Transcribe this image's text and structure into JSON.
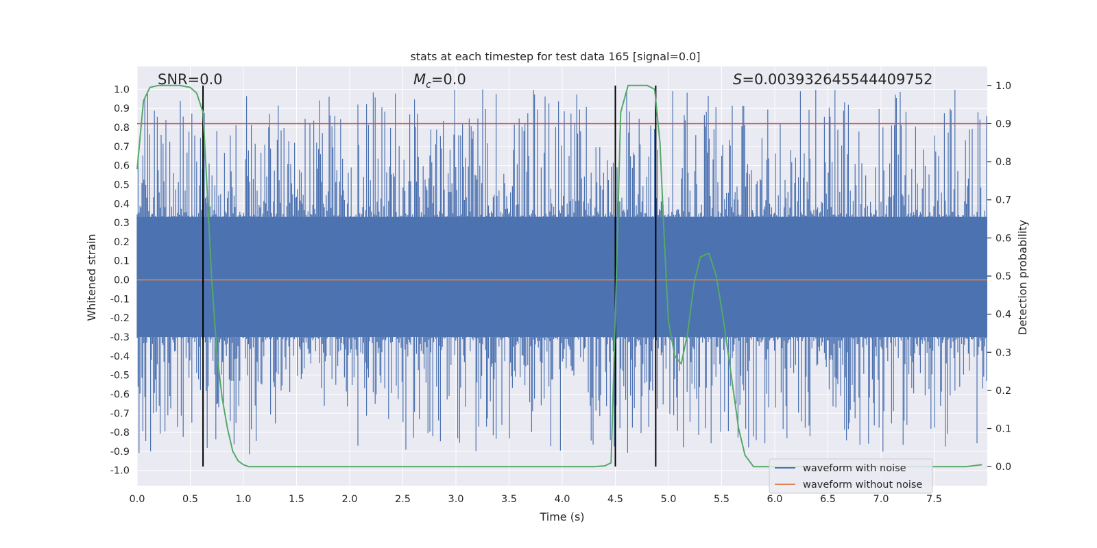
{
  "chart_data": {
    "type": "line",
    "title": "stats at each timestep for test data 165 [signal=0.0]",
    "xlabel": "Time (s)",
    "ylabel": "Whitened strain",
    "ylabel_right": "Detection probability",
    "xlim": [
      0.0,
      8.0
    ],
    "ylim": [
      -1.08,
      1.12
    ],
    "ylim_right": [
      -0.05,
      1.05
    ],
    "xticks": [
      0.0,
      0.5,
      1.0,
      1.5,
      2.0,
      2.5,
      3.0,
      3.5,
      4.0,
      4.5,
      5.0,
      5.5,
      6.0,
      6.5,
      7.0,
      7.5
    ],
    "xtick_labels": [
      "0.0",
      "0.5",
      "1.0",
      "1.5",
      "2.0",
      "2.5",
      "3.0",
      "3.5",
      "4.0",
      "4.5",
      "5.0",
      "5.5",
      "6.0",
      "6.5",
      "7.0",
      "7.5"
    ],
    "yticks": [
      -1.0,
      -0.9,
      -0.8,
      -0.7,
      -0.6,
      -0.5,
      -0.4,
      -0.3,
      -0.2,
      -0.1,
      0.0,
      0.1,
      0.2,
      0.3,
      0.4,
      0.5,
      0.6,
      0.7,
      0.8,
      0.9,
      1.0
    ],
    "ytick_labels": [
      "-1.0",
      "-0.9",
      "-0.8",
      "-0.7",
      "-0.6",
      "-0.5",
      "-0.4",
      "-0.3",
      "-0.2",
      "-0.1",
      "0.0",
      "0.1",
      "0.2",
      "0.3",
      "0.4",
      "0.5",
      "0.6",
      "0.7",
      "0.8",
      "0.9",
      "1.0"
    ],
    "yticks_right": [
      0.0,
      0.1,
      0.2,
      0.3,
      0.4,
      0.5,
      0.6,
      0.7,
      0.8,
      0.9,
      1.0
    ],
    "ytick_labels_right": [
      "0.0",
      "0.1",
      "0.2",
      "0.3",
      "0.4",
      "0.5",
      "0.6",
      "0.7",
      "0.8",
      "0.9",
      "1.0"
    ],
    "annotations": {
      "snr": "SNR=0.0",
      "mc_symbol": "M",
      "mc_subscript": "c",
      "mc_value": "=0.0",
      "s_symbol": "S",
      "s_value": "=0.003932645544409752"
    },
    "legend": {
      "position": "lower-right",
      "entries": [
        {
          "label": "waveform with noise",
          "color": "#4c72b0"
        },
        {
          "label": "waveform without noise",
          "color": "#dd8452"
        }
      ]
    },
    "series": [
      {
        "name": "waveform with noise",
        "color": "#4c72b0",
        "style": "dense noise",
        "band_low": -0.3,
        "band_high": 0.33
      },
      {
        "name": "waveform without noise",
        "color": "#dd8452",
        "values": "constant 0.0"
      },
      {
        "name": "detection probability",
        "axis": "right",
        "color": "#55a868",
        "x": [
          0.0,
          0.06,
          0.12,
          0.2,
          0.3,
          0.4,
          0.5,
          0.56,
          0.62,
          0.66,
          0.7,
          0.75,
          0.8,
          0.85,
          0.9,
          0.95,
          1.0,
          1.05,
          1.1,
          1.2,
          2.0,
          3.0,
          4.0,
          4.3,
          4.4,
          4.46,
          4.5,
          4.55,
          4.62,
          4.8,
          4.87,
          4.92,
          4.96,
          5.0,
          5.06,
          5.12,
          5.18,
          5.24,
          5.3,
          5.38,
          5.45,
          5.52,
          5.6,
          5.66,
          5.72,
          5.8,
          6.0,
          7.0,
          7.5,
          7.8,
          7.95
        ],
        "y": [
          0.78,
          0.96,
          0.995,
          1.0,
          1.0,
          1.0,
          0.995,
          0.98,
          0.93,
          0.72,
          0.5,
          0.3,
          0.18,
          0.1,
          0.04,
          0.015,
          0.005,
          0.0,
          0.0,
          0.0,
          0.0,
          0.0,
          0.0,
          0.0,
          0.002,
          0.01,
          0.4,
          0.93,
          1.0,
          1.0,
          0.99,
          0.85,
          0.6,
          0.38,
          0.29,
          0.27,
          0.35,
          0.48,
          0.55,
          0.56,
          0.5,
          0.38,
          0.22,
          0.1,
          0.03,
          0.0,
          0.0,
          0.0,
          0.0,
          0.0,
          0.005
        ]
      },
      {
        "name": "threshold",
        "axis": "right",
        "color": "#c44e52",
        "values": "constant 0.9"
      }
    ],
    "vertical_markers": [
      0.62,
      4.5,
      4.88
    ],
    "grid": true
  }
}
